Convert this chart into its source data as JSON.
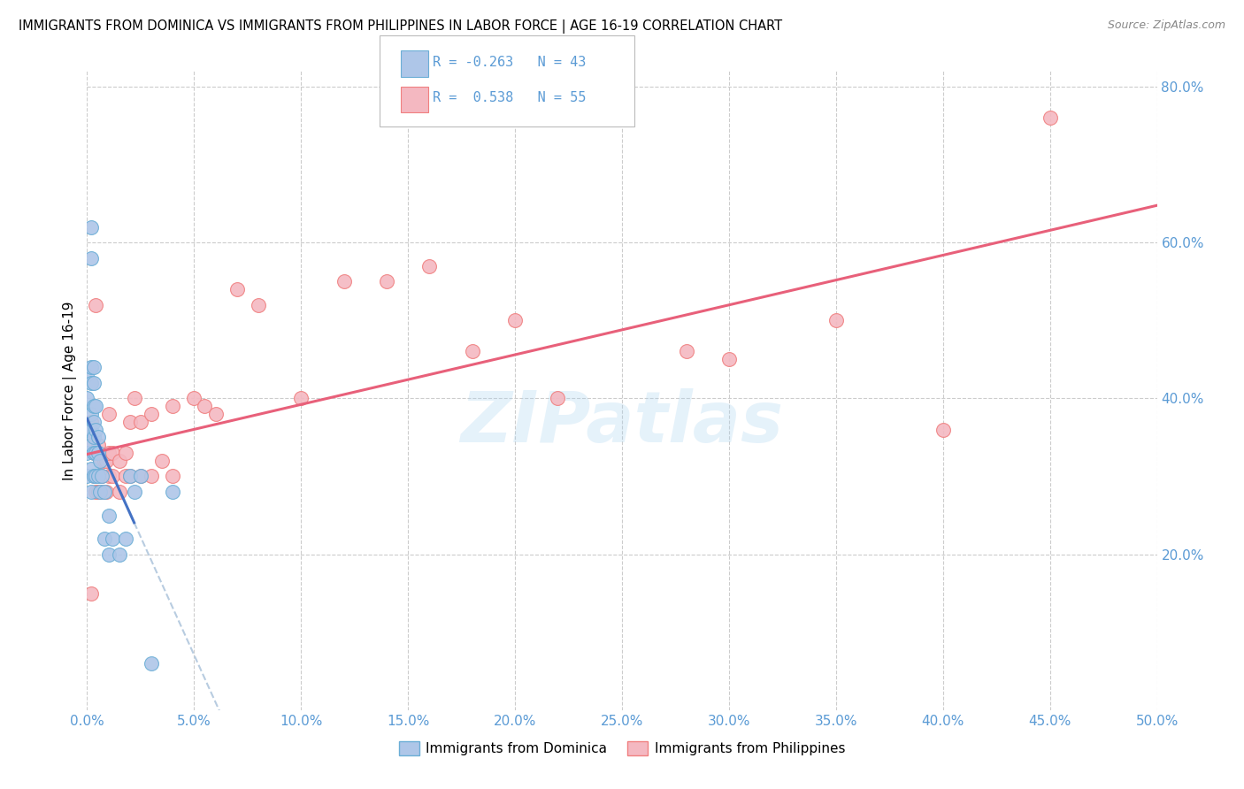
{
  "title": "IMMIGRANTS FROM DOMINICA VS IMMIGRANTS FROM PHILIPPINES IN LABOR FORCE | AGE 16-19 CORRELATION CHART",
  "source": "Source: ZipAtlas.com",
  "ylabel": "In Labor Force | Age 16-19",
  "x_min": 0.0,
  "x_max": 0.5,
  "y_min": 0.0,
  "y_max": 0.82,
  "dominica_color": "#aec6e8",
  "dominica_edge": "#6baed6",
  "philippines_color": "#f4b8c1",
  "philippines_edge": "#f08080",
  "dominica_line_color": "#4472c4",
  "philippines_line_color": "#e8607a",
  "dominica_dashed_color": "#b8cce0",
  "r_dominica": -0.263,
  "n_dominica": 43,
  "r_philippines": 0.538,
  "n_philippines": 55,
  "watermark": "ZIPatlas",
  "tick_color": "#5b9bd5",
  "dominica_x": [
    0.0,
    0.0,
    0.0,
    0.0,
    0.0,
    0.002,
    0.002,
    0.002,
    0.002,
    0.002,
    0.002,
    0.002,
    0.002,
    0.002,
    0.003,
    0.003,
    0.003,
    0.003,
    0.003,
    0.003,
    0.003,
    0.004,
    0.004,
    0.004,
    0.004,
    0.005,
    0.005,
    0.005,
    0.006,
    0.006,
    0.007,
    0.008,
    0.008,
    0.01,
    0.01,
    0.012,
    0.015,
    0.018,
    0.02,
    0.022,
    0.025,
    0.03,
    0.04
  ],
  "dominica_y": [
    0.3,
    0.33,
    0.36,
    0.4,
    0.43,
    0.28,
    0.31,
    0.34,
    0.36,
    0.38,
    0.42,
    0.44,
    0.58,
    0.62,
    0.3,
    0.33,
    0.35,
    0.37,
    0.39,
    0.42,
    0.44,
    0.3,
    0.33,
    0.36,
    0.39,
    0.3,
    0.33,
    0.35,
    0.28,
    0.32,
    0.3,
    0.22,
    0.28,
    0.2,
    0.25,
    0.22,
    0.2,
    0.22,
    0.3,
    0.28,
    0.3,
    0.06,
    0.28
  ],
  "philippines_x": [
    0.002,
    0.002,
    0.002,
    0.003,
    0.003,
    0.004,
    0.004,
    0.004,
    0.004,
    0.005,
    0.005,
    0.005,
    0.006,
    0.006,
    0.007,
    0.008,
    0.008,
    0.009,
    0.009,
    0.01,
    0.01,
    0.01,
    0.012,
    0.012,
    0.015,
    0.015,
    0.018,
    0.018,
    0.02,
    0.02,
    0.022,
    0.025,
    0.025,
    0.03,
    0.03,
    0.035,
    0.04,
    0.04,
    0.05,
    0.055,
    0.06,
    0.07,
    0.08,
    0.1,
    0.12,
    0.14,
    0.16,
    0.18,
    0.2,
    0.22,
    0.28,
    0.3,
    0.35,
    0.4,
    0.45
  ],
  "philippines_y": [
    0.34,
    0.37,
    0.15,
    0.3,
    0.33,
    0.28,
    0.3,
    0.33,
    0.52,
    0.28,
    0.3,
    0.34,
    0.28,
    0.32,
    0.3,
    0.28,
    0.32,
    0.28,
    0.32,
    0.3,
    0.33,
    0.38,
    0.3,
    0.33,
    0.28,
    0.32,
    0.3,
    0.33,
    0.3,
    0.37,
    0.4,
    0.3,
    0.37,
    0.3,
    0.38,
    0.32,
    0.3,
    0.39,
    0.4,
    0.39,
    0.38,
    0.54,
    0.52,
    0.4,
    0.55,
    0.55,
    0.57,
    0.46,
    0.5,
    0.4,
    0.46,
    0.45,
    0.5,
    0.36,
    0.76
  ]
}
